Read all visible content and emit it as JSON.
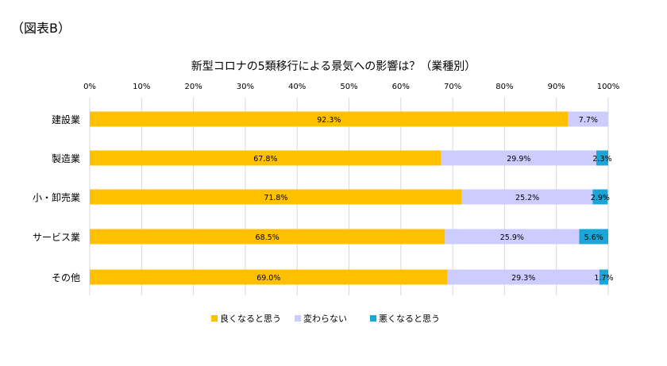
{
  "figure_label": "（図表B）",
  "chart_data": {
    "type": "bar",
    "orientation": "horizontal",
    "stacked": true,
    "title": "新型コロナの5類移行による景気への影響は？（業種別）",
    "categories": [
      "建設業",
      "製造業",
      "小・卸売業",
      "サービス業",
      "その他"
    ],
    "series": [
      {
        "name": "良くなると思う",
        "color": "#FFC000",
        "values": [
          92.3,
          67.8,
          71.8,
          68.5,
          69.0
        ]
      },
      {
        "name": "変わらない",
        "color": "#CCCCFF",
        "values": [
          7.7,
          29.9,
          25.2,
          25.9,
          29.3
        ]
      },
      {
        "name": "悪くなると思う",
        "color": "#1AA6D6",
        "values": [
          0,
          2.3,
          2.9,
          5.6,
          1.7
        ]
      }
    ],
    "data_labels": [
      [
        "92.3%",
        "67.8%",
        "71.8%",
        "68.5%",
        "69.0%"
      ],
      [
        "7.7%",
        "29.9%",
        "25.2%",
        "25.9%",
        "29.3%"
      ],
      [
        "",
        "2.3%",
        "2.9%",
        "5.6%",
        "1.7%"
      ]
    ],
    "xlim": [
      0,
      100
    ],
    "xticks": [
      "0%",
      "10%",
      "20%",
      "30%",
      "40%",
      "50%",
      "60%",
      "70%",
      "80%",
      "90%",
      "100%"
    ],
    "grid": true,
    "legend_position": "bottom"
  }
}
